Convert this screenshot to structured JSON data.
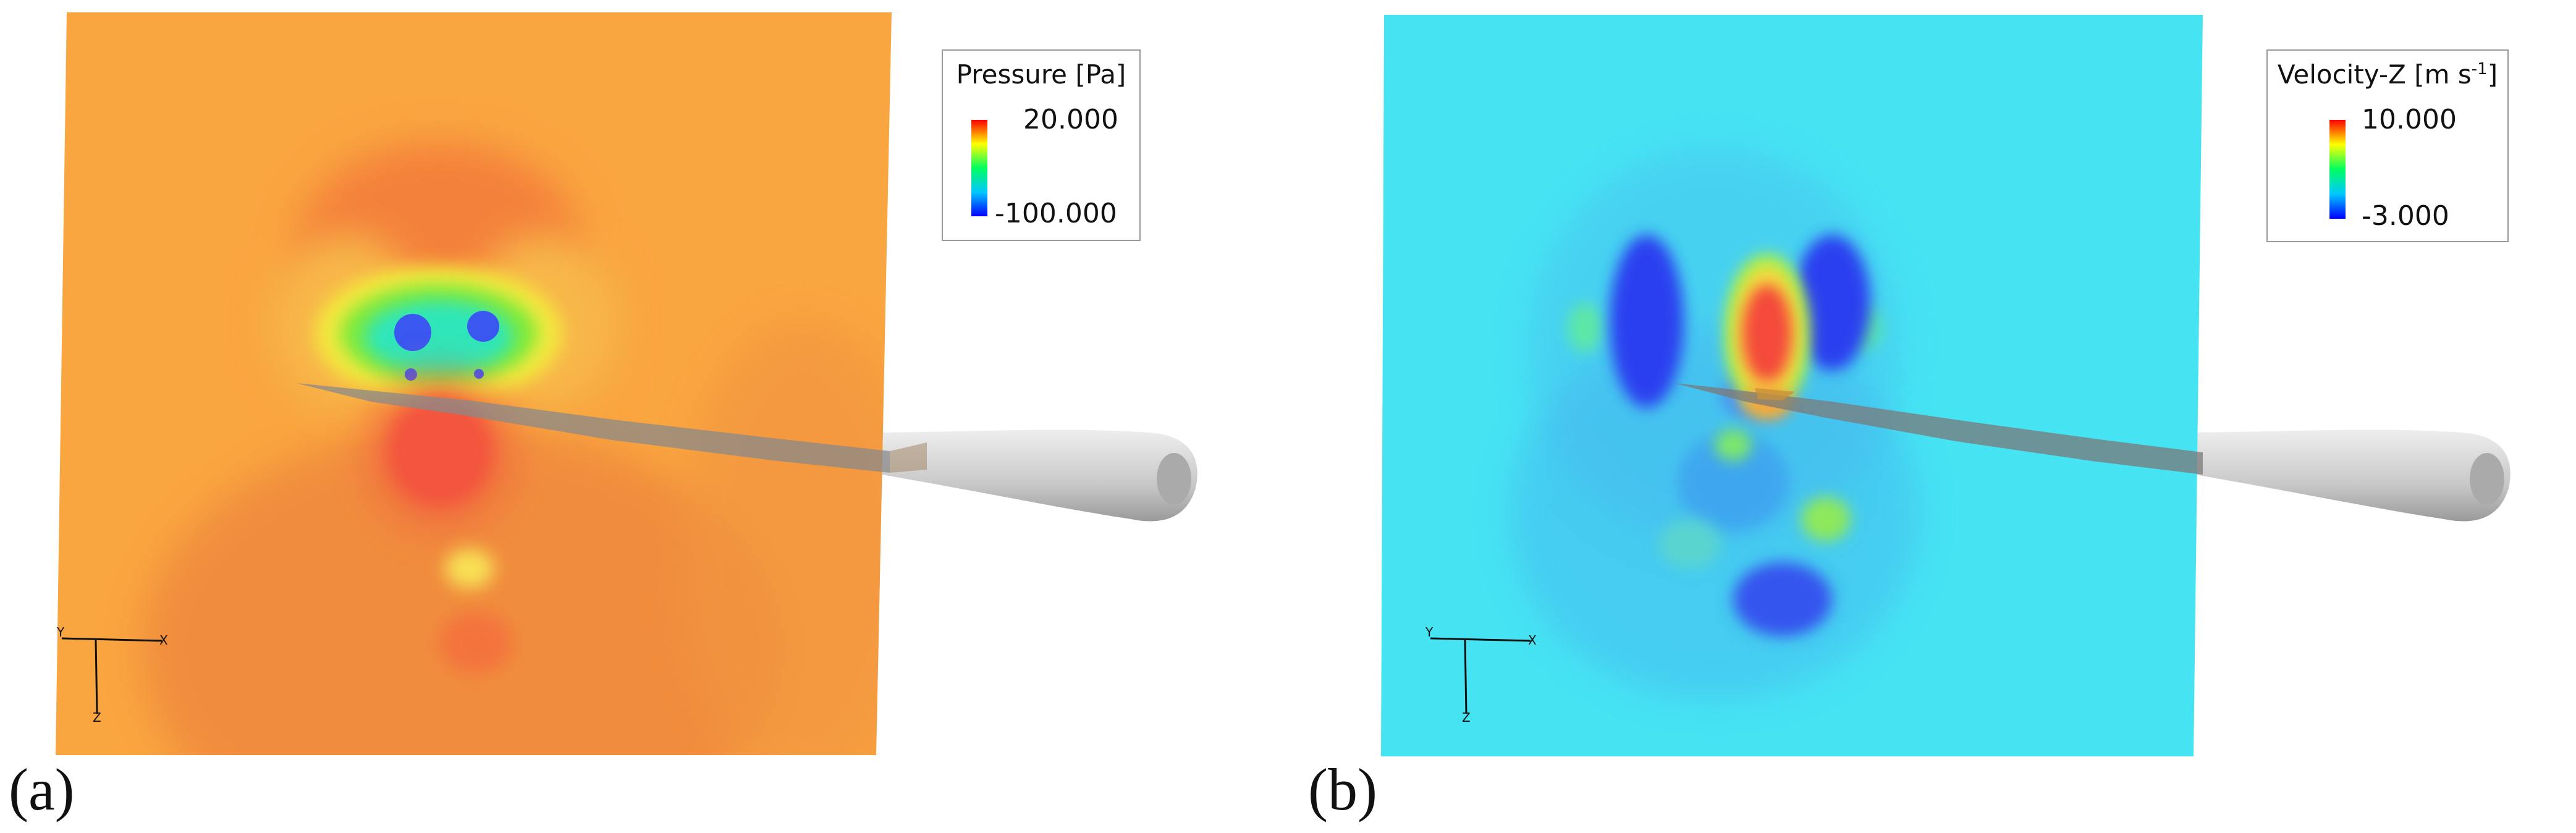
{
  "panels": [
    {
      "label": "(a)",
      "field": "pressure",
      "legend": {
        "title": "Pressure [Pa]",
        "max": "20.000",
        "min": "-100.000"
      },
      "background_color": "#f9a540"
    },
    {
      "label": "(b)",
      "field": "velocity-z",
      "legend": {
        "title_main": "Velocity-Z [m s",
        "title_sup": "-1",
        "title_end": "]",
        "max": "10.000",
        "min": "-3.000"
      },
      "background_color": "#46e3f3"
    }
  ],
  "colormap": [
    "#0000ff",
    "#00c8ff",
    "#00ff60",
    "#ffff00",
    "#ff0000"
  ],
  "axes_triad": {
    "y": "Y",
    "x": "X",
    "z": "Z"
  },
  "blade_color": "#d3d3d3"
}
